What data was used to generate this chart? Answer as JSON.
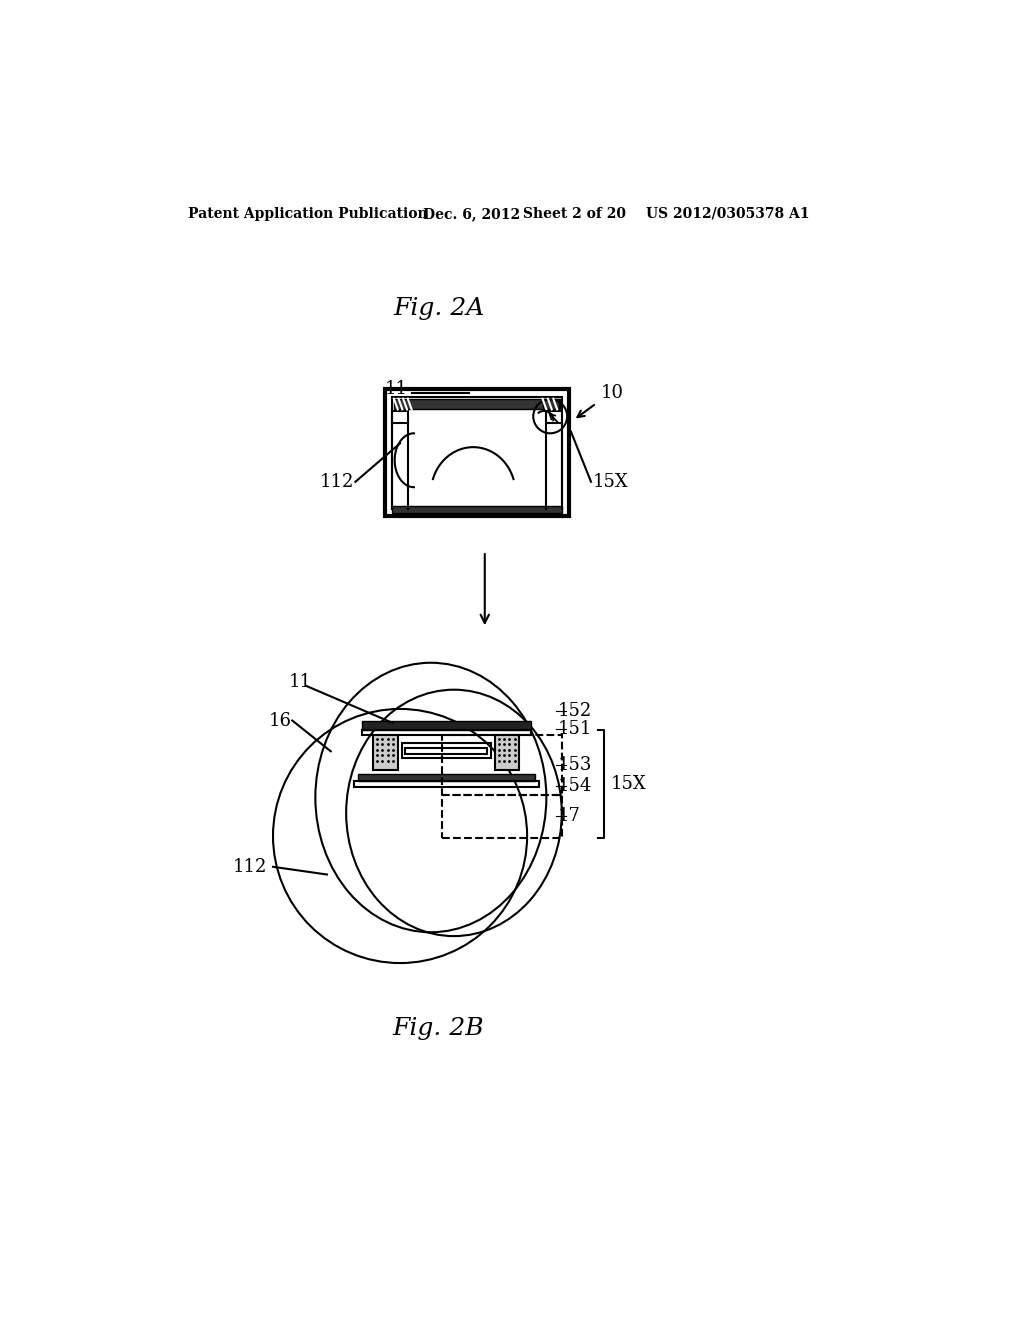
{
  "background_color": "#ffffff",
  "header_text": "Patent Application Publication",
  "header_date": "Dec. 6, 2012",
  "header_sheet": "Sheet 2 of 20",
  "header_patent": "US 2012/0305378 A1",
  "fig2a_label": "Fig. 2A",
  "fig2b_label": "Fig. 2B",
  "label_11_top": "11",
  "label_10": "10",
  "label_112_top": "112",
  "label_15X_top": "15X",
  "label_11_bottom": "11",
  "label_16": "16",
  "label_112_bottom": "112",
  "label_152": "152",
  "label_151": "151",
  "label_153": "153",
  "label_15X_bottom": "15X",
  "label_154": "154",
  "label_17": "17"
}
